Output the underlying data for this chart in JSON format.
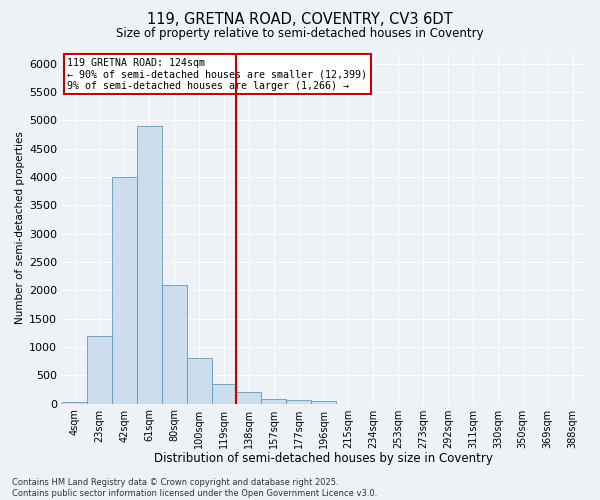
{
  "title_line1": "119, GRETNA ROAD, COVENTRY, CV3 6DT",
  "title_line2": "Size of property relative to semi-detached houses in Coventry",
  "xlabel": "Distribution of semi-detached houses by size in Coventry",
  "ylabel": "Number of semi-detached properties",
  "annotation_title": "119 GRETNA ROAD: 124sqm",
  "annotation_line2": "← 90% of semi-detached houses are smaller (12,399)",
  "annotation_line3": "9% of semi-detached houses are larger (1,266) →",
  "footer_line1": "Contains HM Land Registry data © Crown copyright and database right 2025.",
  "footer_line2": "Contains public sector information licensed under the Open Government Licence v3.0.",
  "bar_color": "#ccdded",
  "bar_edge_color": "#6699bb",
  "background_color": "#eef2f7",
  "grid_color": "#ffffff",
  "annotation_box_color": "#ffffff",
  "annotation_box_edge": "#cc0000",
  "vline_color": "#cc0000",
  "categories": [
    "4sqm",
    "23sqm",
    "42sqm",
    "61sqm",
    "80sqm",
    "100sqm",
    "119sqm",
    "138sqm",
    "157sqm",
    "177sqm",
    "196sqm",
    "215sqm",
    "234sqm",
    "253sqm",
    "273sqm",
    "292sqm",
    "311sqm",
    "330sqm",
    "350sqm",
    "369sqm",
    "388sqm"
  ],
  "values": [
    30,
    1200,
    4000,
    4900,
    2100,
    800,
    340,
    200,
    80,
    55,
    40,
    0,
    0,
    0,
    0,
    0,
    0,
    0,
    0,
    0,
    0
  ],
  "vline_position": 6.5,
  "ylim": [
    0,
    6200
  ],
  "yticks": [
    0,
    500,
    1000,
    1500,
    2000,
    2500,
    3000,
    3500,
    4000,
    4500,
    5000,
    5500,
    6000
  ]
}
